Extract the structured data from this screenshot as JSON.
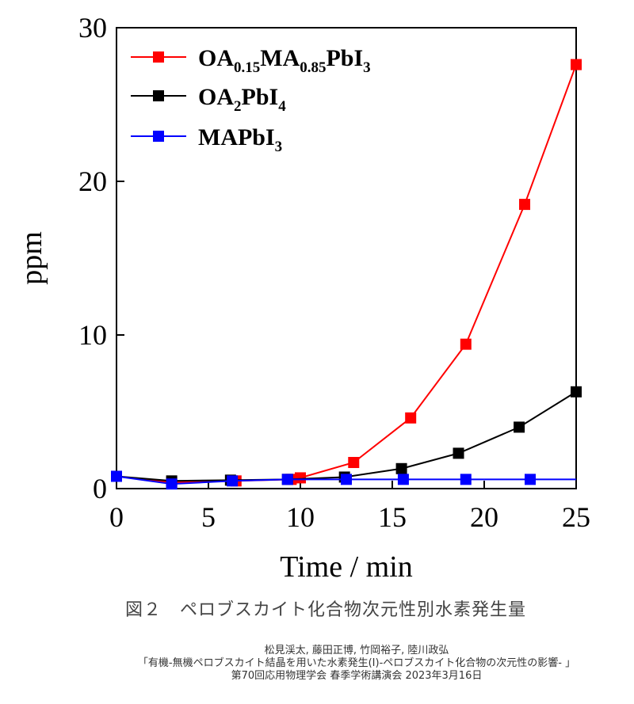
{
  "chart_data": {
    "type": "line",
    "title": "",
    "xlabel": "Time / min",
    "ylabel": "ppm",
    "xlim": [
      0,
      25
    ],
    "ylim": [
      0,
      30
    ],
    "xticks": [
      0,
      5,
      10,
      15,
      20,
      25
    ],
    "yticks": [
      0,
      10,
      20,
      30
    ],
    "grid": false,
    "legend_placement": "top-left",
    "series": [
      {
        "name": "OA0.15MA0.85PbI3",
        "legend_parts": [
          [
            "OA",
            ""
          ],
          [
            "0.15",
            "sub"
          ],
          [
            "MA",
            ""
          ],
          [
            "0.85",
            "sub"
          ],
          [
            "PbI",
            ""
          ],
          [
            "3",
            "sub"
          ]
        ],
        "color": "#ff0000",
        "x": [
          0,
          3,
          6.5,
          9.5,
          10,
          12.9,
          16,
          19,
          22.2,
          25
        ],
        "y": [
          0.8,
          0.4,
          0.5,
          0.6,
          0.7,
          1.7,
          4.6,
          9.4,
          18.5,
          27.6
        ]
      },
      {
        "name": "OA2PbI4",
        "legend_parts": [
          [
            "OA",
            ""
          ],
          [
            "2",
            "sub"
          ],
          [
            "PbI",
            ""
          ],
          [
            "4",
            "sub"
          ]
        ],
        "color": "#000000",
        "x": [
          0,
          3,
          6.2,
          9.3,
          12.4,
          15.5,
          18.6,
          21.9,
          25
        ],
        "y": [
          0.8,
          0.5,
          0.55,
          0.6,
          0.75,
          1.3,
          2.3,
          4.0,
          6.3
        ]
      },
      {
        "name": "MAPbI3",
        "legend_parts": [
          [
            "MAPbI",
            ""
          ],
          [
            "3",
            "sub"
          ]
        ],
        "color": "#0000ff",
        "x": [
          0,
          3,
          6.3,
          9.3,
          12.5,
          15.6,
          19,
          22.5,
          25
        ],
        "y": [
          0.8,
          0.3,
          0.5,
          0.6,
          0.6,
          0.6,
          0.6,
          0.6,
          0.6
        ],
        "markers_exclude_last": true
      }
    ]
  },
  "caption": "図２　ペロブスカイト化合物次元性別水素発生量",
  "credits": {
    "authors": "松見渓太, 藤田正博, 竹岡裕子, 陸川政弘",
    "title": "「有機-無機ペロブスカイト結晶を用いた水素発生(I)-ペロブスカイト化合物の次元性の影響- 」",
    "event": "第70回応用物理学会 春季学術講演会 2023年3月16日"
  }
}
